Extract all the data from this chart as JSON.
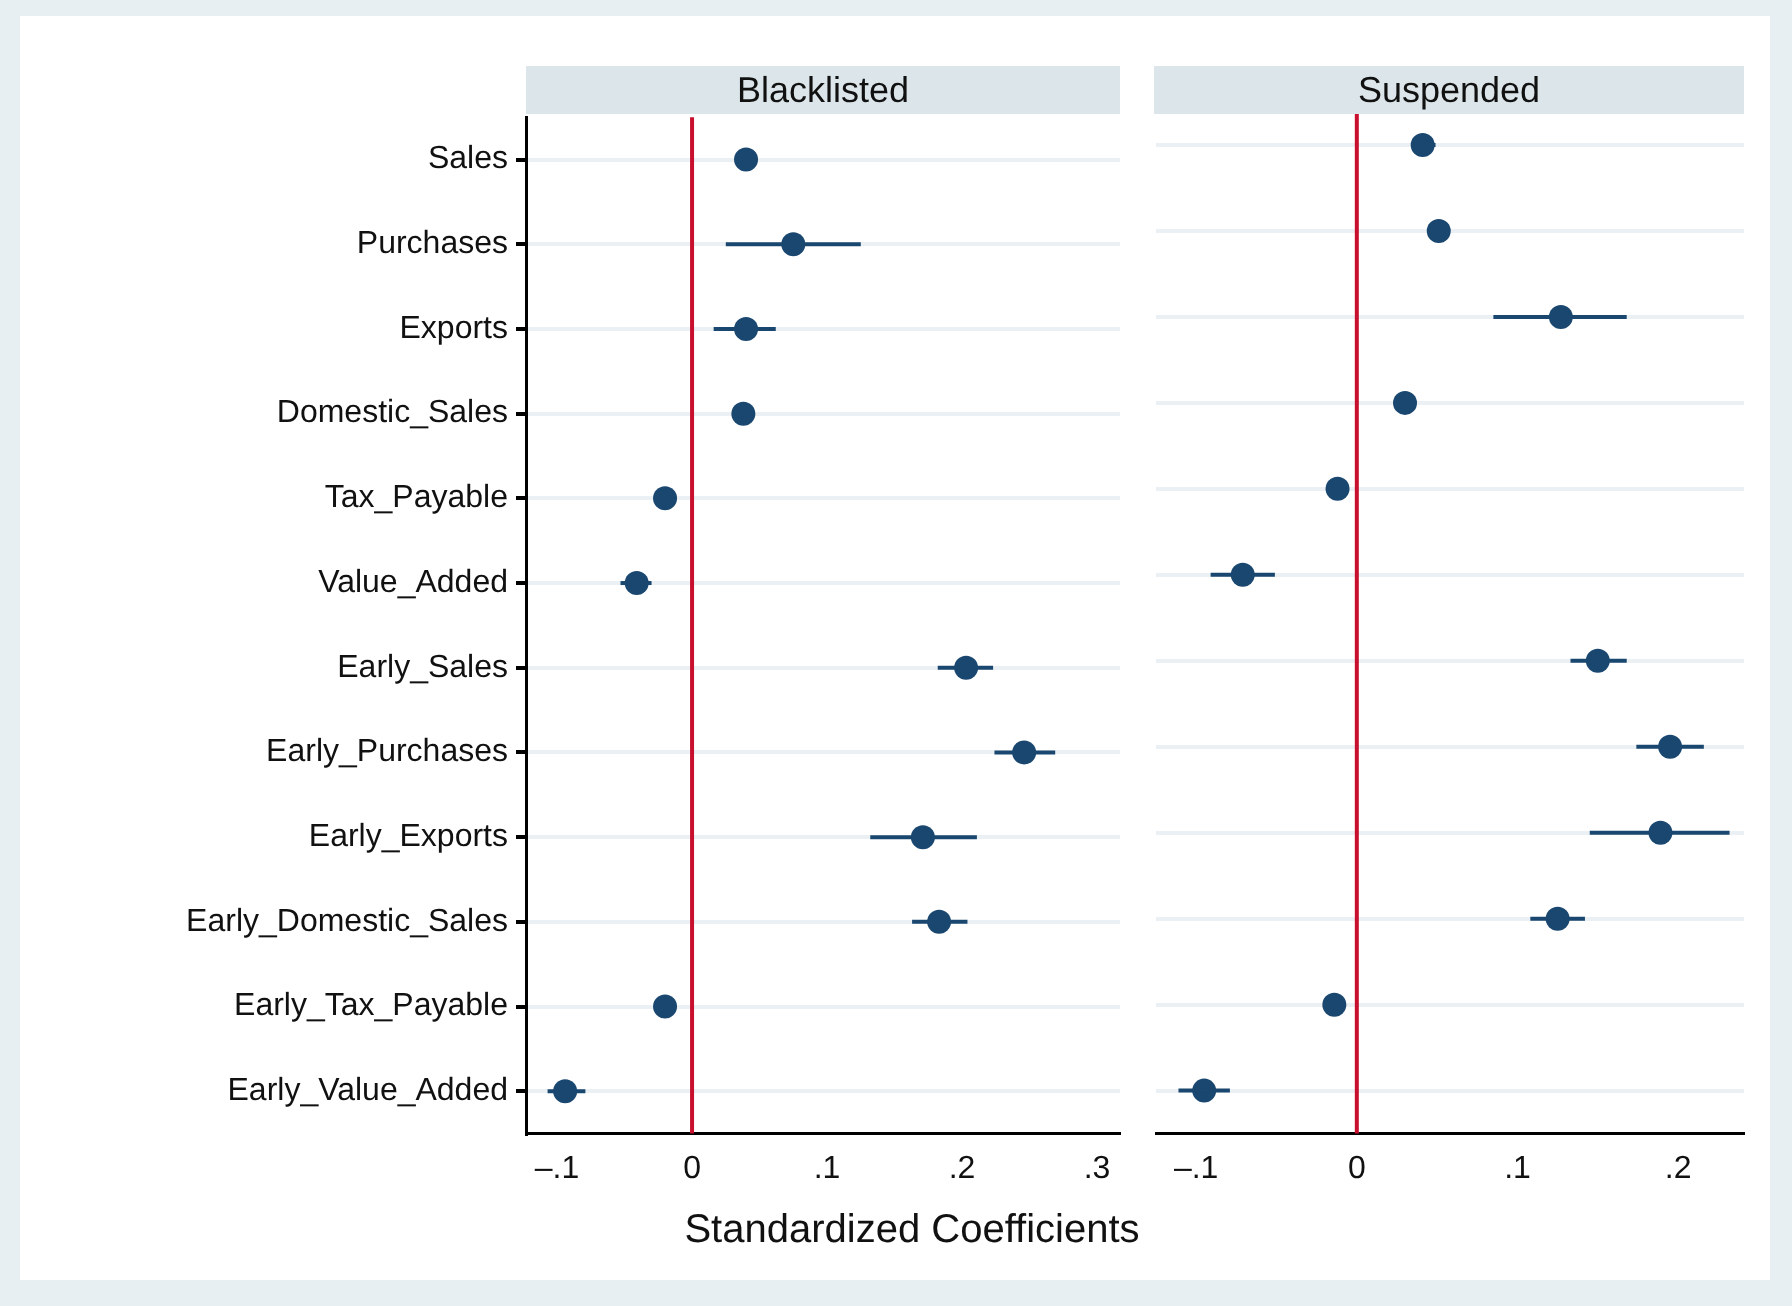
{
  "chart_data": [
    {
      "type": "scatter",
      "title": "Blacklisted",
      "xlabel": "Standardized Coefficients",
      "orientation": "horizontal",
      "categories": [
        "Sales",
        "Purchases",
        "Exports",
        "Domestic_Sales",
        "Tax_Payable",
        "Value_Added",
        "Early_Sales",
        "Early_Purchases",
        "Early_Exports",
        "Early_Domestic_Sales",
        "Early_Tax_Payable",
        "Early_Value_Added"
      ],
      "series": [
        {
          "color": "#1a476f",
          "values": [
            0.04,
            0.075,
            0.04,
            0.038,
            -0.02,
            -0.041,
            0.203,
            0.246,
            0.171,
            0.183,
            -0.02,
            -0.094
          ],
          "errors": [
            null,
            [
              0.025,
              0.125
            ],
            [
              0.016,
              0.062
            ],
            null,
            null,
            [
              -0.053,
              -0.03
            ],
            [
              0.182,
              0.223
            ],
            [
              0.224,
              0.269
            ],
            [
              0.132,
              0.211
            ],
            [
              0.163,
              0.204
            ],
            null,
            [
              -0.107,
              -0.079
            ]
          ]
        }
      ],
      "xlim": [
        -0.123,
        0.317
      ],
      "xticks": [
        {
          "value": -0.1,
          "label": "–.1"
        },
        0,
        {
          "value": 0.1,
          "label": ".1"
        },
        {
          "value": 0.2,
          "label": ".2"
        },
        {
          "value": 0.3,
          "label": ".3"
        }
      ],
      "ref_lines": [
        {
          "axis": "x",
          "value": 0,
          "color": "#c8102e"
        }
      ],
      "grid": "y",
      "marker": "circle",
      "legend": false
    },
    {
      "type": "scatter",
      "title": "Suspended",
      "orientation": "horizontal",
      "categories": [
        null,
        null,
        null,
        null,
        null,
        null,
        null,
        null,
        null,
        null,
        null,
        null
      ],
      "series": [
        {
          "color": "#1a476f",
          "values": [
            0.041,
            0.051,
            0.127,
            0.03,
            -0.012,
            -0.071,
            0.15,
            0.195,
            0.189,
            0.125,
            -0.014,
            -0.095
          ],
          "errors": [
            [
              0.035,
              0.049
            ],
            null,
            [
              0.085,
              0.168
            ],
            null,
            null,
            [
              -0.091,
              -0.051
            ],
            [
              0.133,
              0.168
            ],
            [
              0.174,
              0.216
            ],
            [
              0.145,
              0.232
            ],
            [
              0.108,
              0.142
            ],
            null,
            [
              -0.111,
              -0.079
            ]
          ]
        }
      ],
      "xlim": [
        -0.125,
        0.241
      ],
      "xticks": [
        {
          "value": -0.1,
          "label": "–.1"
        },
        0,
        {
          "value": 0.1,
          "label": ".1"
        },
        {
          "value": 0.2,
          "label": ".2"
        }
      ],
      "ref_lines": [
        {
          "axis": "x",
          "value": 0,
          "color": "#c8102e"
        }
      ],
      "grid": "y",
      "marker": "circle",
      "legend": false,
      "tick_labels": "x"
    }
  ]
}
